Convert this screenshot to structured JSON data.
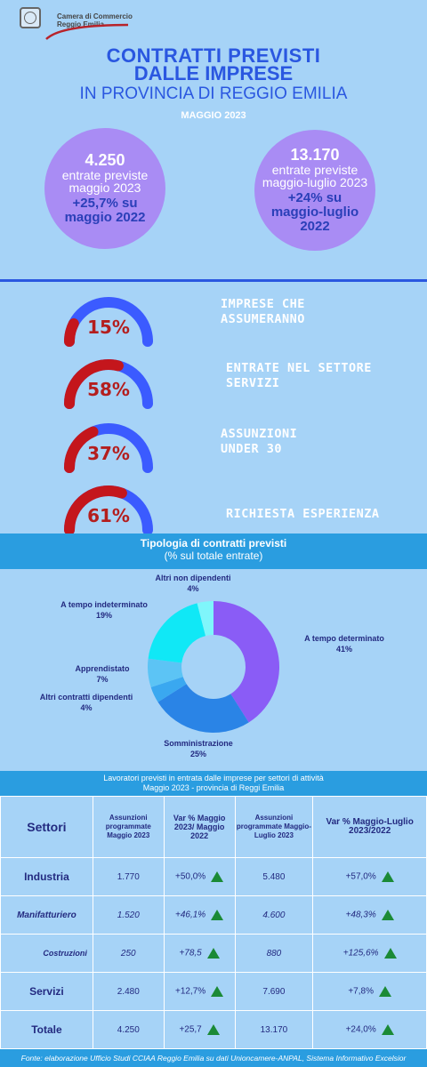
{
  "header": {
    "org_line1": "Camera di Commercio",
    "org_line2": "Reggio Emilia",
    "title_line1": "CONTRATTI PREVISTI",
    "title_line2": "DALLE IMPRESE",
    "subtitle": "IN PROVINCIA DI REGGIO EMILIA",
    "period": "MAGGIO 2023"
  },
  "bubbles": [
    {
      "number": "4.250",
      "text": "entrate previste maggio 2023",
      "variation": "+25,7% su maggio 2022"
    },
    {
      "number": "13.170",
      "text": "entrate previste maggio-luglio 2023",
      "variation": "+24% su maggio-luglio 2022"
    }
  ],
  "gauges": [
    {
      "value": 15,
      "label": "15%",
      "caption": "IMPRESE CHE ASSUMERANNO"
    },
    {
      "value": 58,
      "label": "58%",
      "caption": "ENTRATE NEL SETTORE SERVIZI"
    },
    {
      "value": 37,
      "label": "37%",
      "caption": "ASSUNZIONI UNDER 30"
    },
    {
      "value": 61,
      "label": "61%",
      "caption": "RICHIESTA ESPERIENZA"
    }
  ],
  "colors": {
    "gauge_fill": "#c4161c",
    "gauge_track": "#3b5bff"
  },
  "chart_data": {
    "type": "pie",
    "title": "Tipologia di contratti previsti",
    "subtitle": "(% sul totale entrate)",
    "slices": [
      {
        "label": "A tempo determinato",
        "value": 41,
        "display": "41%",
        "color": "#8a5cf6"
      },
      {
        "label": "Somministrazione",
        "value": 25,
        "display": "25%",
        "color": "#2a84e6"
      },
      {
        "label": "Altri contratti dipendenti",
        "value": 4,
        "display": "4%",
        "color": "#3aa8f0"
      },
      {
        "label": "Apprendistato",
        "value": 7,
        "display": "7%",
        "color": "#5cc4f5"
      },
      {
        "label": "A tempo indeterminato",
        "value": 19,
        "display": "19%",
        "color": "#10e8f6"
      },
      {
        "label": "Altri non dipendenti",
        "value": 4,
        "display": "4%",
        "color": "#7ff6fb"
      }
    ]
  },
  "table": {
    "title_line1": "Lavoratori previsti in entrata dalle imprese per settori di attività",
    "title_line2": "Maggio 2023 - provincia di Reggi Emilia",
    "headers": [
      "Settori",
      "Assunzioni programmate Maggio 2023",
      "Var % Maggio 2023/ Maggio 2022",
      "Assunzioni programmate Maggio-Luglio 2023",
      "Var % Maggio-Luglio 2023/2022"
    ],
    "rows": [
      {
        "sector": "Industria",
        "a": "1.770",
        "va": "+50,0%",
        "b": "5.480",
        "vb": "+57,0%"
      },
      {
        "sector": "Manifatturiero",
        "a": "1.520",
        "va": "+46,1%",
        "b": "4.600",
        "vb": "+48,3%"
      },
      {
        "sector": "Costruzioni",
        "a": "250",
        "va": "+78,5",
        "b": "880",
        "vb": "+125,6%"
      },
      {
        "sector": "Servizi",
        "a": "2.480",
        "va": "+12,7%",
        "b": "7.690",
        "vb": "+7,8%"
      },
      {
        "sector": "Totale",
        "a": "4.250",
        "va": "+25,7",
        "b": "13.170",
        "vb": "+24,0%"
      }
    ]
  },
  "footer": "Fonte: elaborazione Ufficio Studi CCIAA Reggio Emilia su dati Unioncamere-ANPAL, Sistema Informativo Excelsior"
}
